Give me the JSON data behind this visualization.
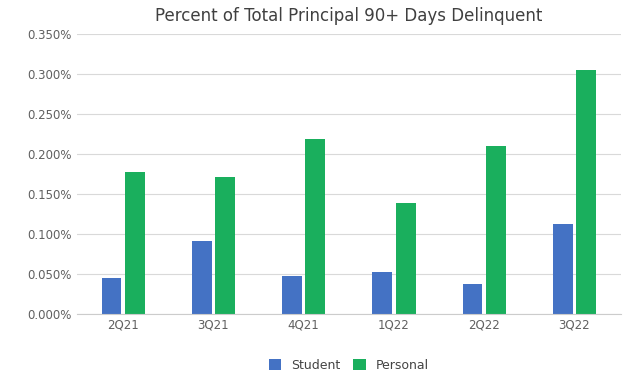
{
  "title": "Percent of Total Principal 90+ Days Delinquent",
  "categories": [
    "2Q21",
    "3Q21",
    "4Q21",
    "1Q22",
    "2Q22",
    "3Q22"
  ],
  "student": [
    0.00045,
    0.00092,
    0.00048,
    0.00053,
    0.00038,
    0.00113
  ],
  "personal": [
    0.00178,
    0.00171,
    0.00219,
    0.00139,
    0.0021,
    0.00305
  ],
  "student_color": "#4472C4",
  "personal_color": "#1AAF5D",
  "background_color": "#FFFFFF",
  "grid_color": "#D9D9D9",
  "ylim": [
    0,
    0.0035
  ],
  "yticks": [
    0.0,
    0.0005,
    0.001,
    0.0015,
    0.002,
    0.0025,
    0.003,
    0.0035
  ],
  "ytick_labels": [
    "0.000%",
    "0.050%",
    "0.100%",
    "0.150%",
    "0.200%",
    "0.250%",
    "0.300%",
    "0.350%"
  ],
  "legend_labels": [
    "Student",
    "Personal"
  ],
  "title_fontsize": 12,
  "axis_fontsize": 8.5,
  "legend_fontsize": 9,
  "bar_width": 0.22
}
